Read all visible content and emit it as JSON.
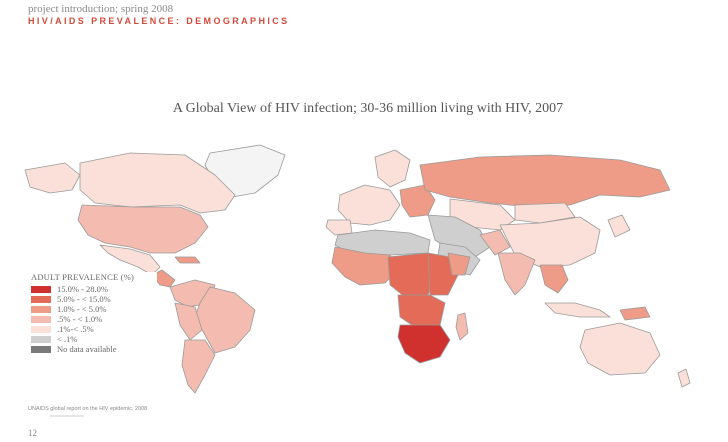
{
  "header": {
    "project_line": "project introduction; spring 2008",
    "section_line": "HIV/AIDS PREVALENCE: DEMOGRAPHICS"
  },
  "map": {
    "title": "A Global View of HIV infection; 30-36 million living with HIV, 2007",
    "colors": {
      "p15_28": "#d0302e",
      "p5_15": "#e36b57",
      "p1_5": "#ee9c87",
      "p05_1": "#f4bcb0",
      "p01_05": "#fae0d9",
      "lt01": "#cfcfcf",
      "nodata": "#7a7a7a",
      "border": "#9a9a9a"
    }
  },
  "legend": {
    "title": "ADULT PREVALENCE (%)",
    "items": [
      {
        "label": "15.0% - 28.0%",
        "color": "#d0302e"
      },
      {
        "label": "5.0% - < 15.0%",
        "color": "#e36b57"
      },
      {
        "label": "1.0% - < 5.0%",
        "color": "#ee9c87"
      },
      {
        "label": ".5% - < 1.0%",
        "color": "#f4bcb0"
      },
      {
        "label": ".1%-< .5%",
        "color": "#fae0d9"
      },
      {
        "label": "< .1%",
        "color": "#cfcfcf"
      },
      {
        "label": "No data available",
        "color": "#7a7a7a"
      }
    ]
  },
  "footer": {
    "source": "UNAIDS global report on the HIV epidemic, 2008",
    "page_number": "12"
  }
}
